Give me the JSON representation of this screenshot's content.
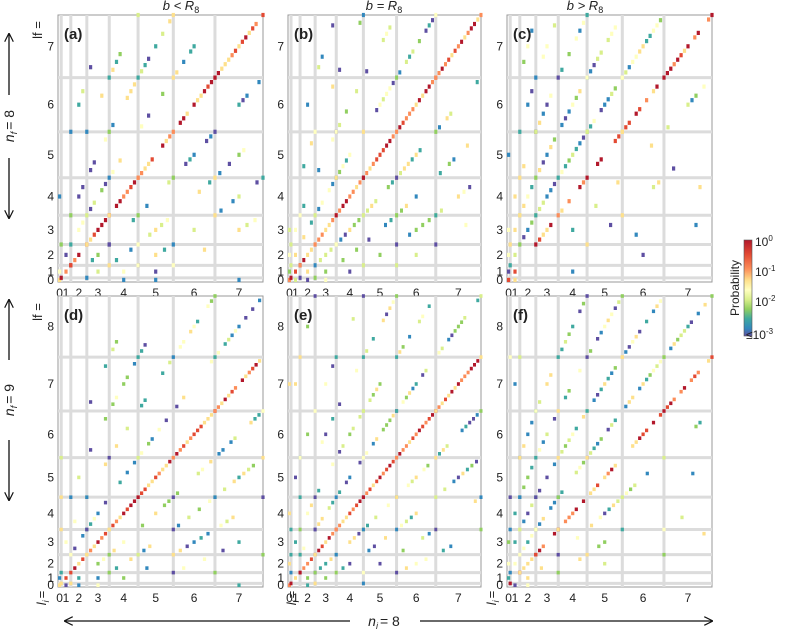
{
  "figure": {
    "column_titles": [
      "b < R",
      "b = R",
      "b > R"
    ],
    "column_title_subscript": "8",
    "row_axis_labels": [
      {
        "n_sym": "n",
        "n_sub": "f",
        "n_value": "= 8",
        "l_label": "lf ="
      },
      {
        "n_sym": "n",
        "n_sub": "f",
        "n_value": "= 9",
        "l_label": "lf ="
      }
    ],
    "bottom_axis": {
      "n_sym": "n",
      "n_sub": "i",
      "n_value": "= 8",
      "l_label": "l",
      "l_sub": "i",
      "l_eq": "="
    },
    "colorbar": {
      "title": "Probability",
      "ticks": [
        {
          "base": "10",
          "exp": "0"
        },
        {
          "base": "10",
          "exp": "-1"
        },
        {
          "base": "10",
          "exp": "-2"
        },
        {
          "base": "≤10",
          "exp": "-3"
        }
      ],
      "colors": [
        "#b2182b",
        "#e34a33",
        "#fc8d59",
        "#fee08b",
        "#ffffbf",
        "#d9ef8b",
        "#91cf60",
        "#3fa9a0",
        "#3288bd",
        "#5e4fa2"
      ]
    },
    "grid_color": "#dcdcdc",
    "frame_color": "#9a9a9a"
  },
  "chart_data": [
    {
      "type": "heatmap",
      "panel": "(a)",
      "column": "b < R8",
      "n_f": 8,
      "n_i": 8,
      "x_tick_labels": [
        "0",
        "1",
        "2",
        "3",
        "4",
        "5",
        "6",
        "7"
      ],
      "y_tick_labels": [
        "0",
        "1",
        "2",
        "3",
        "4",
        "5",
        "6",
        "7"
      ],
      "scale": "log",
      "color_range": [
        0.001,
        1
      ],
      "description_of_cells": "strong diagonal (l_f = l_i) near 1; weaker off-diagonal transition bands"
    },
    {
      "type": "heatmap",
      "panel": "(b)",
      "column": "b = R8",
      "n_f": 8,
      "n_i": 8,
      "x_tick_labels": [
        "0",
        "1",
        "2",
        "3",
        "4",
        "5",
        "6",
        "7"
      ],
      "y_tick_labels": [
        "0",
        "1",
        "2",
        "3",
        "4",
        "5",
        "6",
        "7"
      ],
      "scale": "log",
      "color_range": [
        0.001,
        1
      ]
    },
    {
      "type": "heatmap",
      "panel": "(c)",
      "column": "b > R8",
      "n_f": 8,
      "n_i": 8,
      "x_tick_labels": [
        "0",
        "1",
        "2",
        "3",
        "4",
        "5",
        "6",
        "7"
      ],
      "y_tick_labels": [
        "0",
        "1",
        "2",
        "3",
        "4",
        "5",
        "6",
        "7"
      ],
      "scale": "log",
      "color_range": [
        0.001,
        1
      ]
    },
    {
      "type": "heatmap",
      "panel": "(d)",
      "column": "b < R8",
      "n_f": 9,
      "n_i": 8,
      "x_tick_labels": [
        "0",
        "1",
        "2",
        "3",
        "4",
        "5",
        "6",
        "7"
      ],
      "y_tick_labels": [
        "0",
        "1",
        "2",
        "3",
        "4",
        "5",
        "6",
        "7",
        "8"
      ],
      "scale": "log",
      "color_range": [
        0.001,
        1
      ]
    },
    {
      "type": "heatmap",
      "panel": "(e)",
      "column": "b = R8",
      "n_f": 9,
      "n_i": 8,
      "x_tick_labels": [
        "0",
        "1",
        "2",
        "3",
        "4",
        "5",
        "6",
        "7"
      ],
      "y_tick_labels": [
        "0",
        "1",
        "2",
        "3",
        "4",
        "5",
        "6",
        "7",
        "8"
      ],
      "scale": "log",
      "color_range": [
        0.001,
        1
      ]
    },
    {
      "type": "heatmap",
      "panel": "(f)",
      "column": "b > R8",
      "n_f": 9,
      "n_i": 8,
      "x_tick_labels": [
        "0",
        "1",
        "2",
        "3",
        "4",
        "5",
        "6",
        "7"
      ],
      "y_tick_labels": [
        "0",
        "1",
        "2",
        "3",
        "4",
        "5",
        "6",
        "7",
        "8"
      ],
      "scale": "log",
      "color_range": [
        0.001,
        1
      ]
    }
  ]
}
